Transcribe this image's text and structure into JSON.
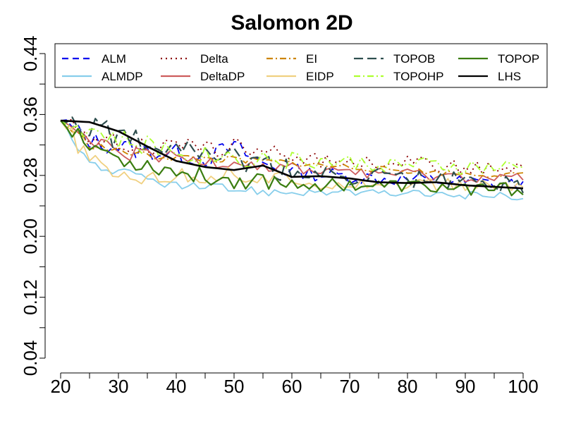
{
  "chart_data": {
    "type": "line",
    "title": "Salomon 2D",
    "xlabel": "",
    "ylabel": "",
    "xlim": [
      20,
      100
    ],
    "ylim": [
      0.04,
      0.44
    ],
    "xticks": [
      20,
      30,
      40,
      50,
      60,
      70,
      80,
      90,
      100
    ],
    "xtick_labels": [
      "20",
      "30",
      "40",
      "50",
      "60",
      "70",
      "80",
      "90",
      "100"
    ],
    "yticks": [
      0.04,
      0.12,
      0.2,
      0.28,
      0.36,
      0.44
    ],
    "ytick_labels": [
      "0.04",
      "0.12",
      "0.20",
      "0.28",
      "0.36",
      "0.44"
    ],
    "grid": false,
    "legend_position": "top",
    "x": [
      20,
      25,
      30,
      35,
      40,
      45,
      50,
      55,
      60,
      65,
      70,
      75,
      80,
      85,
      90,
      95,
      100
    ],
    "series": [
      {
        "name": "ALM",
        "color": "#0000ee",
        "dash": "dashed",
        "values": [
          0.352,
          0.326,
          0.318,
          0.311,
          0.309,
          0.303,
          0.317,
          0.295,
          0.286,
          0.281,
          0.279,
          0.276,
          0.275,
          0.273,
          0.271,
          0.27,
          0.268
        ]
      },
      {
        "name": "ALMDP",
        "color": "#87ceeb",
        "dash": "solid",
        "values": [
          0.352,
          0.296,
          0.284,
          0.276,
          0.266,
          0.263,
          0.262,
          0.259,
          0.258,
          0.258,
          0.257,
          0.256,
          0.256,
          0.255,
          0.254,
          0.254,
          0.252
        ]
      },
      {
        "name": "Delta",
        "color": "#8b0000",
        "dash": "dotted",
        "values": [
          0.352,
          0.33,
          0.324,
          0.318,
          0.317,
          0.314,
          0.32,
          0.308,
          0.305,
          0.3,
          0.298,
          0.296,
          0.3,
          0.292,
          0.29,
          0.29,
          0.286
        ]
      },
      {
        "name": "DeltaDP",
        "color": "#cd5c5c",
        "dash": "solid",
        "values": [
          0.352,
          0.323,
          0.31,
          0.304,
          0.302,
          0.298,
          0.3,
          0.292,
          0.289,
          0.285,
          0.287,
          0.283,
          0.281,
          0.279,
          0.278,
          0.277,
          0.276
        ]
      },
      {
        "name": "EI",
        "color": "#cd8500",
        "dash": "dashdot",
        "values": [
          0.352,
          0.32,
          0.312,
          0.306,
          0.303,
          0.302,
          0.3,
          0.298,
          0.296,
          0.293,
          0.291,
          0.288,
          0.286,
          0.284,
          0.282,
          0.281,
          0.28
        ]
      },
      {
        "name": "EIDP",
        "color": "#f0d080",
        "dash": "solid",
        "values": [
          0.352,
          0.298,
          0.281,
          0.28,
          0.277,
          0.279,
          0.282,
          0.274,
          0.272,
          0.271,
          0.27,
          0.269,
          0.268,
          0.267,
          0.266,
          0.266,
          0.265
        ]
      },
      {
        "name": "TOPOB",
        "color": "#2f4f4f",
        "dash": "longdash",
        "values": [
          0.352,
          0.348,
          0.329,
          0.327,
          0.323,
          0.315,
          0.3,
          0.292,
          0.283,
          0.281,
          0.279,
          0.278,
          0.276,
          0.274,
          0.272,
          0.27,
          0.269
        ]
      },
      {
        "name": "TOPOHP",
        "color": "#adff2f",
        "dash": "dashdot",
        "values": [
          0.352,
          0.34,
          0.325,
          0.318,
          0.312,
          0.306,
          0.305,
          0.302,
          0.3,
          0.298,
          0.296,
          0.295,
          0.293,
          0.292,
          0.29,
          0.289,
          0.289
        ]
      },
      {
        "name": "TOPOP",
        "color": "#3a7d10",
        "dash": "solid",
        "values": [
          0.352,
          0.325,
          0.301,
          0.294,
          0.285,
          0.278,
          0.274,
          0.273,
          0.27,
          0.268,
          0.268,
          0.266,
          0.266,
          0.264,
          0.263,
          0.262,
          0.261
        ]
      },
      {
        "name": "LHS",
        "color": "#000000",
        "dash": "solid",
        "values": [
          0.352,
          0.35,
          0.338,
          0.318,
          0.299,
          0.291,
          0.287,
          0.293,
          0.278,
          0.279,
          0.276,
          0.271,
          0.27,
          0.271,
          0.267,
          0.265,
          0.263
        ]
      }
    ]
  }
}
